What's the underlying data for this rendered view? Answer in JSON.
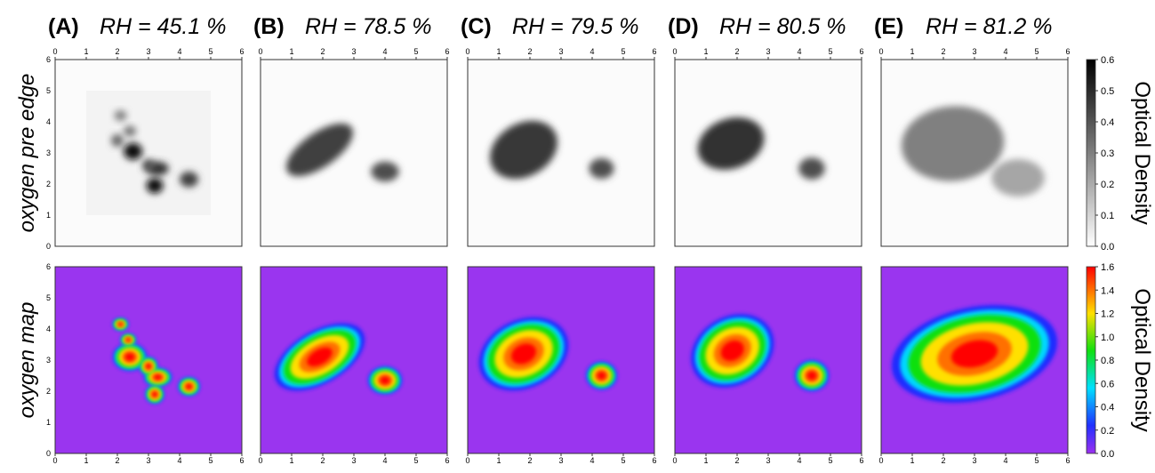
{
  "columns": [
    {
      "label": "(A)",
      "title": "RH = 45.1 %"
    },
    {
      "label": "(B)",
      "title": "RH = 78.5 %"
    },
    {
      "label": "(C)",
      "title": "RH = 79.5 %"
    },
    {
      "label": "(D)",
      "title": "RH = 80.5 %"
    },
    {
      "label": "(E)",
      "title": "RH = 81.2 %"
    }
  ],
  "rows": [
    "oxygen pre edge",
    "oxygen map"
  ],
  "axis_ticks": [
    "0",
    "1",
    "2",
    "3",
    "4",
    "5",
    "6"
  ],
  "colorbars": [
    {
      "label": "Optical Density",
      "ticks": [
        "0.0",
        "0.1",
        "0.2",
        "0.3",
        "0.4",
        "0.5",
        "0.6"
      ]
    },
    {
      "label": "Optical Density",
      "ticks": [
        "0.0",
        "0.2",
        "0.4",
        "0.6",
        "0.8",
        "1.0",
        "1.2",
        "1.4",
        "1.6"
      ]
    }
  ]
}
